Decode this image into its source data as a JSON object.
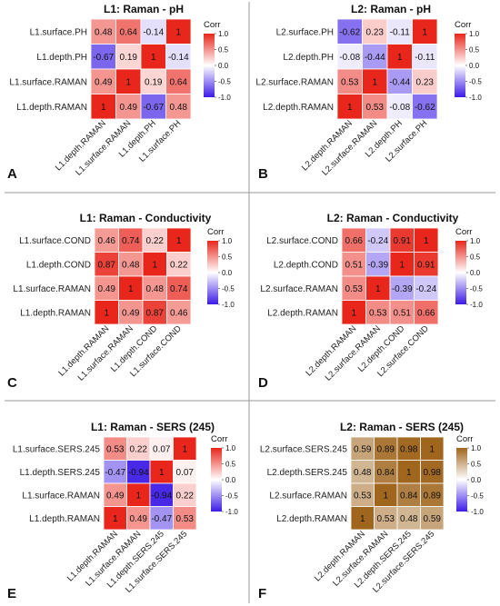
{
  "chart_data": [
    {
      "type": "heatmap",
      "letter": "A",
      "title": "L1: Raman - pH",
      "rows": [
        "L1.surface.PH",
        "L1.depth.PH",
        "L1.surface.RAMAN",
        "L1.depth.RAMAN"
      ],
      "cols": [
        "L1.depth.RAMAN",
        "L1.surface.RAMAN",
        "L1.depth.PH",
        "L1.surface.PH"
      ],
      "values": [
        [
          0.48,
          0.64,
          -0.14,
          1
        ],
        [
          -0.67,
          0.19,
          1,
          -0.14
        ],
        [
          0.49,
          1,
          0.19,
          0.64
        ],
        [
          1,
          0.49,
          -0.67,
          0.48
        ]
      ],
      "legend": {
        "title": "Corr",
        "ticks": [
          "1.0",
          "0.5",
          "0.0",
          "-0.5",
          "-1.0"
        ],
        "low_color": "#3c1be6",
        "mid_color": "#ffffff",
        "high_color": "#e8261b"
      }
    },
    {
      "type": "heatmap",
      "letter": "B",
      "title": "L2: Raman - pH",
      "rows": [
        "L2.surface.PH",
        "L2.depth.PH",
        "L2.surface.RAMAN",
        "L2.depth.RAMAN"
      ],
      "cols": [
        "L2.depth.RAMAN",
        "L2.surface.RAMAN",
        "L2.depth.PH",
        "L2.surface.PH"
      ],
      "values": [
        [
          -0.62,
          0.23,
          -0.11,
          1
        ],
        [
          -0.08,
          -0.44,
          1,
          -0.11
        ],
        [
          0.53,
          1,
          -0.44,
          0.23
        ],
        [
          1,
          0.53,
          -0.08,
          -0.62
        ]
      ],
      "legend": {
        "title": "Corr",
        "ticks": [
          "1.0",
          "0.5",
          "0.0",
          "-0.5",
          "-1.0"
        ],
        "low_color": "#3c1be6",
        "mid_color": "#ffffff",
        "high_color": "#e8261b"
      }
    },
    {
      "type": "heatmap",
      "letter": "C",
      "title": "L1: Raman - Conductivity",
      "rows": [
        "L1.surface.COND",
        "L1.depth.COND",
        "L1.surface.RAMAN",
        "L1.depth.RAMAN"
      ],
      "cols": [
        "L1.depth.RAMAN",
        "L1.surface.RAMAN",
        "L1.depth.COND",
        "L1.surface.COND"
      ],
      "values": [
        [
          0.46,
          0.74,
          0.22,
          1
        ],
        [
          0.87,
          0.48,
          1,
          0.22
        ],
        [
          0.49,
          1,
          0.48,
          0.74
        ],
        [
          1,
          0.49,
          0.87,
          0.46
        ]
      ],
      "legend": {
        "title": "Corr",
        "ticks": [
          "1.0",
          "0.5",
          "0.0",
          "-0.5",
          "-1.0"
        ],
        "low_color": "#3c1be6",
        "mid_color": "#ffffff",
        "high_color": "#e8261b"
      }
    },
    {
      "type": "heatmap",
      "letter": "D",
      "title": "L2: Raman - Conductivity",
      "rows": [
        "L2.surface.COND",
        "L2.depth.COND",
        "L2.surface.RAMAN",
        "L2.depth.RAMAN"
      ],
      "cols": [
        "L2.depth.RAMAN",
        "L2.surface.RAMAN",
        "L2.depth.COND",
        "L2.surface.COND"
      ],
      "values": [
        [
          0.66,
          -0.24,
          0.91,
          1
        ],
        [
          0.51,
          -0.39,
          1,
          0.91
        ],
        [
          0.53,
          1,
          -0.39,
          -0.24
        ],
        [
          1,
          0.53,
          0.51,
          0.66
        ]
      ],
      "legend": {
        "title": "Corr",
        "ticks": [
          "1.0",
          "0.5",
          "0.0",
          "-0.5",
          "-1.0"
        ],
        "low_color": "#3c1be6",
        "mid_color": "#ffffff",
        "high_color": "#e8261b"
      }
    },
    {
      "type": "heatmap",
      "letter": "E",
      "title": "L1: Raman - SERS (245)",
      "rows": [
        "L1.surface.SERS.245",
        "L1.depth.SERS.245",
        "L1.surface.RAMAN",
        "L1.depth.RAMAN"
      ],
      "cols": [
        "L1.depth.RAMAN",
        "L1.surface.RAMAN",
        "L1.depth.SERS.245",
        "L1.surface.SERS.245"
      ],
      "values": [
        [
          0.53,
          0.22,
          0.07,
          1
        ],
        [
          -0.47,
          -0.94,
          1,
          0.07
        ],
        [
          0.49,
          1,
          -0.94,
          0.22
        ],
        [
          1,
          0.49,
          -0.47,
          0.53
        ]
      ],
      "legend": {
        "title": "Corr",
        "ticks": [
          "1.0",
          "0.5",
          "0.0",
          "-0.5",
          "-1.0"
        ],
        "low_color": "#3c1be6",
        "mid_color": "#ffffff",
        "high_color": "#e8261b"
      }
    },
    {
      "type": "heatmap",
      "letter": "F",
      "title": "L2: Raman - SERS (245)",
      "rows": [
        "L2.surface.SERS.245",
        "L2.depth.SERS.245",
        "L2.surface.RAMAN",
        "L2.depth.RAMAN"
      ],
      "cols": [
        "L2.depth.RAMAN",
        "L2.surface.RAMAN",
        "L2.depth.SERS.245",
        "L2.surface.SERS.245"
      ],
      "values": [
        [
          0.59,
          0.89,
          0.98,
          1
        ],
        [
          0.48,
          0.84,
          1,
          0.98
        ],
        [
          0.53,
          1,
          0.84,
          0.89
        ],
        [
          1,
          0.53,
          0.48,
          0.59
        ]
      ],
      "legend": {
        "title": "Corr",
        "ticks": [
          "1.0",
          "0.5",
          "0.0",
          "-0.5",
          "-1.0"
        ],
        "low_color": "#3c1be6",
        "mid_color": "#ffffff",
        "high_color": "#a0661e"
      }
    }
  ]
}
